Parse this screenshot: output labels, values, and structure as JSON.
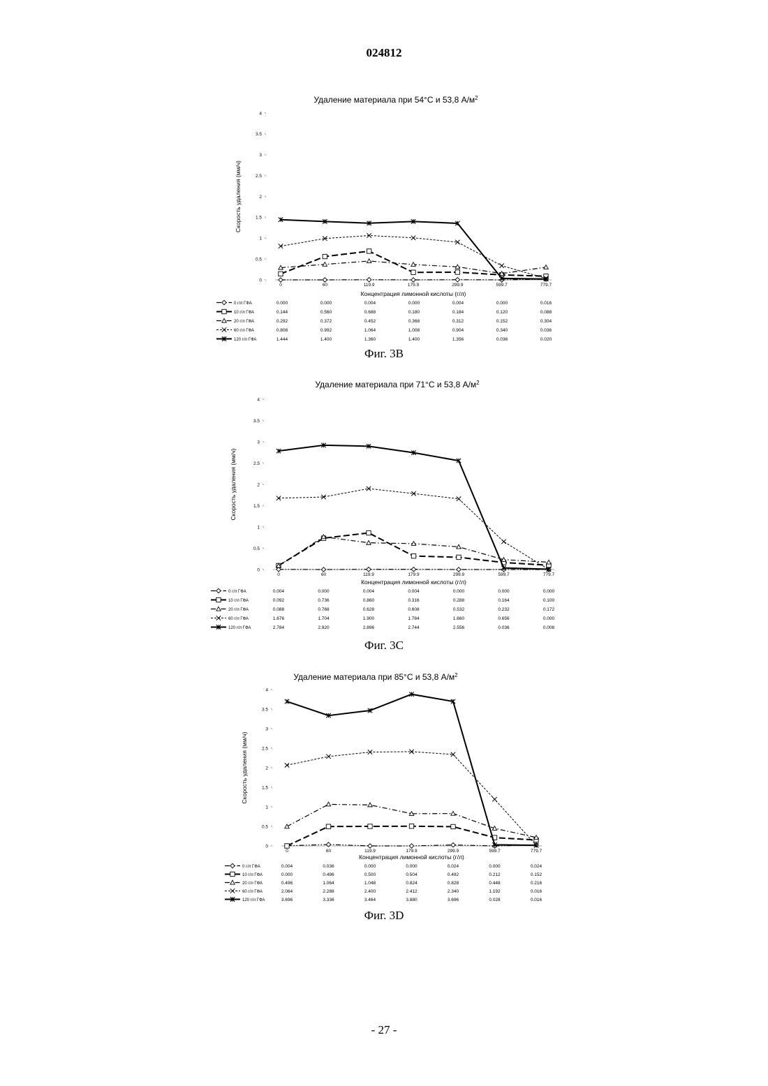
{
  "document": {
    "header_number": "024812",
    "page_footer": "- 27 -"
  },
  "chart_data": [
    {
      "type": "line",
      "title": "Удаление материала при 54°C и 53,8 А/м",
      "title_superscript": "2",
      "caption": "Фиг. 3B",
      "xlabel": "Концентрация лимонной кислоты (г/л)",
      "ylabel": "Скорость удаления (мм/ч)",
      "categories": [
        "0",
        "60",
        "119.9",
        "179.9",
        "299.9",
        "599.7",
        "779.7"
      ],
      "ylim": [
        0,
        4
      ],
      "yticks": [
        "0",
        "0.5",
        "1",
        "1.5",
        "2",
        "2.5",
        "3",
        "3.5",
        "4"
      ],
      "grid": false,
      "legend_position": "left-table",
      "series": [
        {
          "name": "0 г/л ГФА",
          "marker": "diamond",
          "dash": "dashdotdot",
          "values": [
            0.0,
            0.0,
            0.004,
            0.0,
            0.004,
            0.0,
            0.016
          ],
          "labels": [
            "0.000",
            "0.000",
            "0.004",
            "0.000",
            "0.004",
            "0.000",
            "0.016"
          ]
        },
        {
          "name": "10 г/л ГФА",
          "marker": "square",
          "dash": "longdash",
          "values": [
            0.144,
            0.56,
            0.688,
            0.18,
            0.184,
            0.12,
            0.088
          ],
          "labels": [
            "0.144",
            "0.560",
            "0.688",
            "0.180",
            "0.184",
            "0.120",
            "0.088"
          ]
        },
        {
          "name": "20 г/л ГФА",
          "marker": "triangle",
          "dash": "dashdot",
          "values": [
            0.292,
            0.372,
            0.452,
            0.368,
            0.312,
            0.152,
            0.304
          ],
          "labels": [
            "0.292",
            "0.372",
            "0.452",
            "0.368",
            "0.312",
            "0.152",
            "0.304"
          ]
        },
        {
          "name": "60 г/л ГФА",
          "marker": "x",
          "dash": "shortdash",
          "values": [
            0.808,
            0.992,
            1.064,
            1.008,
            0.904,
            0.34,
            0.036
          ],
          "labels": [
            "0.808",
            "0.992",
            "1.064",
            "1.008",
            "0.904",
            "0.340",
            "0.036"
          ]
        },
        {
          "name": "120 г/л ГФА",
          "marker": "star",
          "dash": "solid",
          "values": [
            1.444,
            1.4,
            1.36,
            1.4,
            1.356,
            0.036,
            0.02
          ],
          "labels": [
            "1.444",
            "1.400",
            "1.360",
            "1.400",
            "1.356",
            "0.036",
            "0.020"
          ]
        }
      ]
    },
    {
      "type": "line",
      "title": "Удаление материала при 71°C и 53,8 А/м",
      "title_superscript": "2",
      "caption": "Фиг. 3C",
      "xlabel": "Концентрация лимонной кислоты (г/л)",
      "ylabel": "Скорость удаления (мм/ч)",
      "categories": [
        "0",
        "60",
        "119.9",
        "179.9",
        "299.9",
        "599.7",
        "779.7"
      ],
      "ylim": [
        0,
        4
      ],
      "yticks": [
        "0",
        "0.5",
        "1",
        "1.5",
        "2",
        "2.5",
        "3",
        "3.5",
        "4"
      ],
      "grid": false,
      "legend_position": "left-table",
      "series": [
        {
          "name": "0 г/л ГФА",
          "marker": "diamond",
          "dash": "dashdotdot",
          "values": [
            0.004,
            0.0,
            0.004,
            0.004,
            0.0,
            0.0,
            0.0
          ],
          "labels": [
            "0.004",
            "0.000",
            "0.004",
            "0.004",
            "0.000",
            "0.000",
            "0.000"
          ]
        },
        {
          "name": "10 г/л ГФА",
          "marker": "square",
          "dash": "longdash",
          "values": [
            0.092,
            0.736,
            0.86,
            0.316,
            0.288,
            0.164,
            0.1
          ],
          "labels": [
            "0.092",
            "0.736",
            "0.860",
            "0.316",
            "0.288",
            "0.164",
            "0.100"
          ]
        },
        {
          "name": "20 г/л ГФА",
          "marker": "triangle",
          "dash": "dashdot",
          "values": [
            0.088,
            0.768,
            0.628,
            0.608,
            0.532,
            0.232,
            0.172
          ],
          "labels": [
            "0.088",
            "0.768",
            "0.628",
            "0.608",
            "0.532",
            "0.232",
            "0.172"
          ]
        },
        {
          "name": "60 г/л ГФА",
          "marker": "x",
          "dash": "shortdash",
          "values": [
            1.676,
            1.704,
            1.9,
            1.784,
            1.66,
            0.656,
            0.0
          ],
          "labels": [
            "1.676",
            "1.704",
            "1.900",
            "1.784",
            "1.660",
            "0.656",
            "0.000"
          ]
        },
        {
          "name": "120 г/л ГФА",
          "marker": "star",
          "dash": "solid",
          "values": [
            2.784,
            2.92,
            2.896,
            2.744,
            2.556,
            0.036,
            0.008
          ],
          "labels": [
            "2.784",
            "2.920",
            "2.896",
            "2.744",
            "2.556",
            "0.036",
            "0.008"
          ]
        }
      ]
    },
    {
      "type": "line",
      "title": "Удаление материала при 85°C и 53,8 А/м",
      "title_superscript": "2",
      "caption": "Фиг. 3D",
      "xlabel": "Концентрация лимонной кислоты (г/л)",
      "ylabel": "Скорость удаления (мм/ч)",
      "categories": [
        "0",
        "60",
        "119.9",
        "179.9",
        "299.9",
        "599.7",
        "779.7"
      ],
      "ylim": [
        0,
        4
      ],
      "yticks": [
        "0",
        "0.5",
        "1",
        "1.5",
        "2",
        "2.5",
        "3",
        "3.5",
        "4"
      ],
      "grid": false,
      "legend_position": "left-table",
      "series": [
        {
          "name": "0 г/л ГФА",
          "marker": "diamond",
          "dash": "dashdotdot",
          "values": [
            0.004,
            0.036,
            0.0,
            0.0,
            0.024,
            0.0,
            0.024
          ],
          "labels": [
            "0.004",
            "0.036",
            "0.000",
            "0.000",
            "0.024",
            "0.000",
            "0.024"
          ]
        },
        {
          "name": "10 г/л ГФА",
          "marker": "square",
          "dash": "longdash",
          "values": [
            0.0,
            0.496,
            0.5,
            0.504,
            0.492,
            0.212,
            0.152
          ],
          "labels": [
            "0.000",
            "0.496",
            "0.500",
            "0.504",
            "0.492",
            "0.212",
            "0.152"
          ]
        },
        {
          "name": "20 г/л ГФА",
          "marker": "triangle",
          "dash": "dashdot",
          "values": [
            0.496,
            1.064,
            1.048,
            0.824,
            0.828,
            0.448,
            0.216
          ],
          "labels": [
            "0.496",
            "1.064",
            "1.048",
            "0.824",
            "0.828",
            "0.448",
            "0.216"
          ]
        },
        {
          "name": "60 г/л ГФА",
          "marker": "x",
          "dash": "shortdash",
          "values": [
            2.064,
            2.288,
            2.4,
            2.412,
            2.34,
            1.192,
            0.016
          ],
          "labels": [
            "2.064",
            "2.288",
            "2.400",
            "2.412",
            "2.340",
            "1.192",
            "0.016"
          ]
        },
        {
          "name": "120 г/л ГФА",
          "marker": "star",
          "dash": "solid",
          "values": [
            3.696,
            3.336,
            3.464,
            3.88,
            3.696,
            0.028,
            0.016
          ],
          "labels": [
            "3.696",
            "3.336",
            "3.464",
            "3.880",
            "3.696",
            "0.028",
            "0.016"
          ]
        }
      ]
    }
  ]
}
